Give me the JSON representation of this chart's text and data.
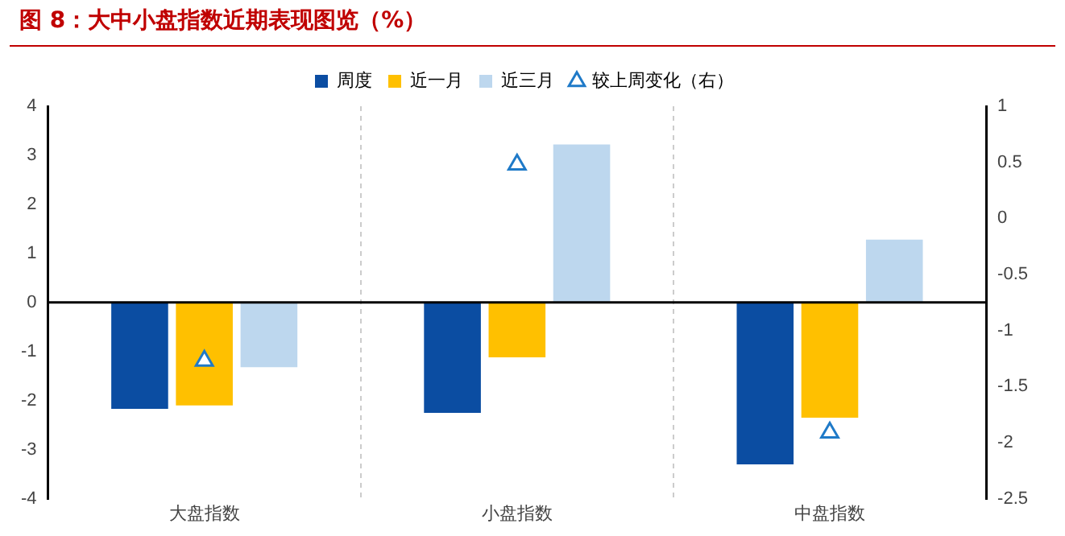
{
  "chart_data": {
    "type": "bar",
    "title": "图 8：大中小盘指数近期表现图览（%）",
    "categories": [
      "大盘指数",
      "小盘指数",
      "中盘指数"
    ],
    "series": [
      {
        "name": "周度",
        "color": "#0b4da2",
        "values": [
          -2.17,
          -2.25,
          -3.3
        ]
      },
      {
        "name": "近一月",
        "color": "#ffc000",
        "values": [
          -2.1,
          -1.12,
          -2.35
        ]
      },
      {
        "name": "近三月",
        "color": "#bdd7ee",
        "values": [
          -1.32,
          3.22,
          1.28
        ]
      },
      {
        "name": "较上周变化（右）",
        "type": "scatter",
        "axis": "y2",
        "marker": "triangle",
        "color": "#1f7ac8",
        "x": [
          "大盘指数",
          "小盘指数",
          "中盘指数"
        ],
        "values": [
          -1.27,
          0.48,
          -1.91
        ]
      }
    ],
    "ylim": [
      -4,
      4
    ],
    "yticks": [
      -4,
      -3,
      -2,
      -1,
      0,
      1,
      2,
      3,
      4
    ],
    "y2lim": [
      -2.5,
      1
    ],
    "y2ticks": [
      -2.5,
      -2,
      -1.5,
      -1,
      -0.5,
      0,
      0.5,
      1
    ],
    "grid": "x",
    "legend": "top"
  }
}
